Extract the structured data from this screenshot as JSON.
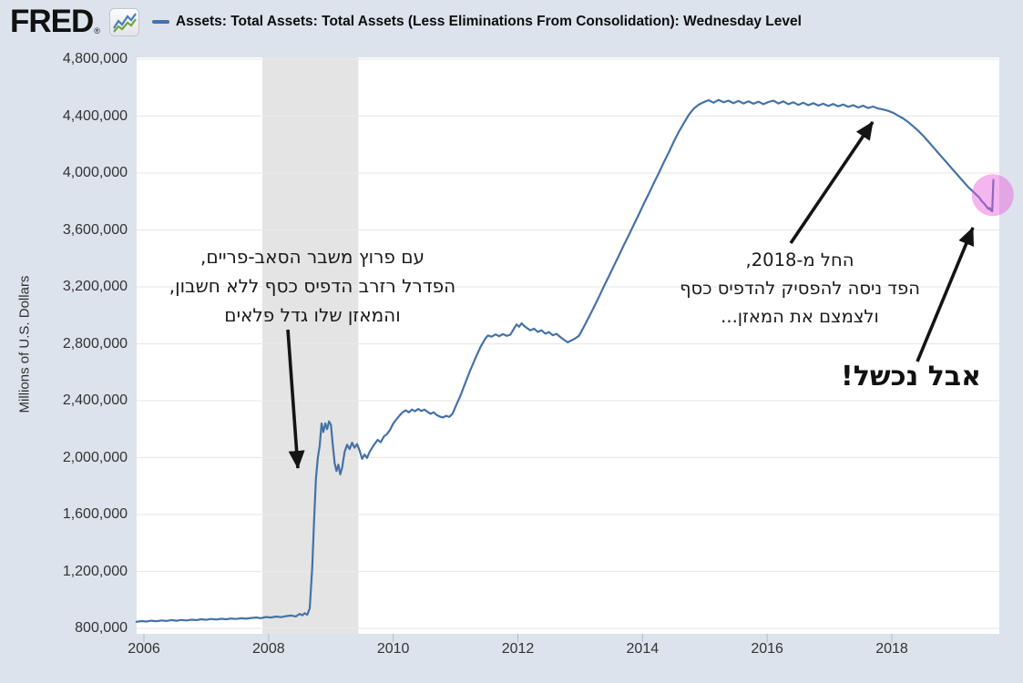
{
  "page": {
    "background_color": "#dce3ed"
  },
  "header": {
    "logo": "FRED",
    "registered": "®",
    "series_marker_color": "#4572a7",
    "title": "Assets: Total Assets: Total Assets (Less Eliminations From Consolidation): Wednesday Level"
  },
  "y_axis": {
    "title": "Millions of U.S. Dollars"
  },
  "annotations": {
    "subprime": {
      "lines": [
        "עם פרוץ משבר הסאב-פריים,",
        "הפדרל רזרב הדפיס כסף ללא חשבון,",
        "והמאזן שלו גדל פלאים"
      ]
    },
    "taper": {
      "lines": [
        "החל מ-2018,",
        "הפד ניסה להפסיק להדפיס כסף",
        "ולצמצם את המאזן..."
      ]
    },
    "failed": {
      "text": "אבל נכשל!"
    }
  },
  "chart_data": {
    "type": "line",
    "title": "Assets: Total Assets: Total Assets (Less Eliminations From Consolidation): Wednesday Level",
    "ylabel": "Millions of U.S. Dollars",
    "line_color": "#4572a7",
    "grid": true,
    "legend_position": "top",
    "x_range": [
      2005.85,
      2019.75
    ],
    "y_range": [
      760000,
      4810000
    ],
    "y_ticks": [
      {
        "label": "4,800,000",
        "value": 4800000
      },
      {
        "label": "4,400,000",
        "value": 4400000
      },
      {
        "label": "4,000,000",
        "value": 4000000
      },
      {
        "label": "3,600,000",
        "value": 3600000
      },
      {
        "label": "3,200,000",
        "value": 3200000
      },
      {
        "label": "2,800,000",
        "value": 2800000
      },
      {
        "label": "2,400,000",
        "value": 2400000
      },
      {
        "label": "2,000,000",
        "value": 2000000
      },
      {
        "label": "1,600,000",
        "value": 1600000
      },
      {
        "label": "1,200,000",
        "value": 1200000
      },
      {
        "label": "800,000",
        "value": 800000
      }
    ],
    "x_ticks": [
      {
        "label": "2006",
        "value": 2006
      },
      {
        "label": "2008",
        "value": 2008
      },
      {
        "label": "2010",
        "value": 2010
      },
      {
        "label": "2012",
        "value": 2012
      },
      {
        "label": "2014",
        "value": 2014
      },
      {
        "label": "2016",
        "value": 2016
      },
      {
        "label": "2018",
        "value": 2018
      }
    ],
    "recession_band": {
      "start": 2007.9,
      "end": 2009.44,
      "color": "#e4e4e4"
    },
    "highlight_circle": {
      "x": 2019.62,
      "value": 3845000,
      "radius_px": 23,
      "color": "#e85cdb",
      "opacity": 0.45
    },
    "series": [
      {
        "name": "Assets: Total Assets: Total Assets (Less Eliminations From Consolidation): Wednesday Level",
        "units": "Millions of U.S. Dollars",
        "points": [
          [
            2005.88,
            846000
          ],
          [
            2005.96,
            851000
          ],
          [
            2006.04,
            848000
          ],
          [
            2006.12,
            854000
          ],
          [
            2006.2,
            850000
          ],
          [
            2006.28,
            856000
          ],
          [
            2006.36,
            852000
          ],
          [
            2006.44,
            858000
          ],
          [
            2006.52,
            854000
          ],
          [
            2006.6,
            859000
          ],
          [
            2006.68,
            856000
          ],
          [
            2006.76,
            861000
          ],
          [
            2006.84,
            858000
          ],
          [
            2006.92,
            864000
          ],
          [
            2007,
            860000
          ],
          [
            2007.08,
            866000
          ],
          [
            2007.16,
            862000
          ],
          [
            2007.24,
            867000
          ],
          [
            2007.32,
            864000
          ],
          [
            2007.4,
            869000
          ],
          [
            2007.48,
            866000
          ],
          [
            2007.56,
            871000
          ],
          [
            2007.64,
            868000
          ],
          [
            2007.72,
            873000
          ],
          [
            2007.8,
            876000
          ],
          [
            2007.88,
            872000
          ],
          [
            2007.96,
            880000
          ],
          [
            2008.04,
            876000
          ],
          [
            2008.12,
            883000
          ],
          [
            2008.2,
            879000
          ],
          [
            2008.28,
            886000
          ],
          [
            2008.36,
            890000
          ],
          [
            2008.44,
            884000
          ],
          [
            2008.5,
            902000
          ],
          [
            2008.54,
            892000
          ],
          [
            2008.58,
            906000
          ],
          [
            2008.62,
            896000
          ],
          [
            2008.66,
            940000
          ],
          [
            2008.7,
            1220000
          ],
          [
            2008.73,
            1560000
          ],
          [
            2008.76,
            1850000
          ],
          [
            2008.79,
            2000000
          ],
          [
            2008.82,
            2080000
          ],
          [
            2008.85,
            2240000
          ],
          [
            2008.88,
            2180000
          ],
          [
            2008.91,
            2240000
          ],
          [
            2008.94,
            2200000
          ],
          [
            2008.97,
            2255000
          ],
          [
            2009,
            2230000
          ],
          [
            2009.03,
            2090000
          ],
          [
            2009.06,
            1960000
          ],
          [
            2009.09,
            1905000
          ],
          [
            2009.12,
            1950000
          ],
          [
            2009.15,
            1882000
          ],
          [
            2009.18,
            1930000
          ],
          [
            2009.22,
            2040000
          ],
          [
            2009.26,
            2090000
          ],
          [
            2009.3,
            2060000
          ],
          [
            2009.34,
            2105000
          ],
          [
            2009.38,
            2070000
          ],
          [
            2009.42,
            2095000
          ],
          [
            2009.46,
            2050000
          ],
          [
            2009.5,
            1992000
          ],
          [
            2009.54,
            2022000
          ],
          [
            2009.58,
            1998000
          ],
          [
            2009.62,
            2040000
          ],
          [
            2009.66,
            2068000
          ],
          [
            2009.7,
            2095000
          ],
          [
            2009.75,
            2125000
          ],
          [
            2009.8,
            2108000
          ],
          [
            2009.85,
            2148000
          ],
          [
            2009.9,
            2165000
          ],
          [
            2009.95,
            2195000
          ],
          [
            2010,
            2240000
          ],
          [
            2010.05,
            2268000
          ],
          [
            2010.1,
            2295000
          ],
          [
            2010.15,
            2318000
          ],
          [
            2010.2,
            2332000
          ],
          [
            2010.25,
            2318000
          ],
          [
            2010.3,
            2338000
          ],
          [
            2010.35,
            2326000
          ],
          [
            2010.4,
            2342000
          ],
          [
            2010.45,
            2328000
          ],
          [
            2010.5,
            2338000
          ],
          [
            2010.55,
            2322000
          ],
          [
            2010.6,
            2308000
          ],
          [
            2010.65,
            2318000
          ],
          [
            2010.7,
            2298000
          ],
          [
            2010.75,
            2288000
          ],
          [
            2010.8,
            2282000
          ],
          [
            2010.85,
            2294000
          ],
          [
            2010.9,
            2286000
          ],
          [
            2010.95,
            2308000
          ],
          [
            2011,
            2358000
          ],
          [
            2011.08,
            2438000
          ],
          [
            2011.16,
            2528000
          ],
          [
            2011.24,
            2618000
          ],
          [
            2011.32,
            2700000
          ],
          [
            2011.4,
            2778000
          ],
          [
            2011.48,
            2838000
          ],
          [
            2011.52,
            2858000
          ],
          [
            2011.58,
            2850000
          ],
          [
            2011.64,
            2866000
          ],
          [
            2011.7,
            2854000
          ],
          [
            2011.76,
            2868000
          ],
          [
            2011.82,
            2856000
          ],
          [
            2011.88,
            2864000
          ],
          [
            2011.94,
            2908000
          ],
          [
            2011.98,
            2936000
          ],
          [
            2012.02,
            2920000
          ],
          [
            2012.06,
            2944000
          ],
          [
            2012.1,
            2926000
          ],
          [
            2012.14,
            2912000
          ],
          [
            2012.2,
            2895000
          ],
          [
            2012.26,
            2906000
          ],
          [
            2012.32,
            2884000
          ],
          [
            2012.38,
            2895000
          ],
          [
            2012.44,
            2872000
          ],
          [
            2012.5,
            2882000
          ],
          [
            2012.56,
            2860000
          ],
          [
            2012.62,
            2870000
          ],
          [
            2012.68,
            2848000
          ],
          [
            2012.74,
            2828000
          ],
          [
            2012.8,
            2810000
          ],
          [
            2012.86,
            2824000
          ],
          [
            2012.92,
            2838000
          ],
          [
            2012.98,
            2856000
          ],
          [
            2013.06,
            2920000
          ],
          [
            2013.14,
            2988000
          ],
          [
            2013.22,
            3058000
          ],
          [
            2013.3,
            3128000
          ],
          [
            2013.38,
            3204000
          ],
          [
            2013.46,
            3274000
          ],
          [
            2013.54,
            3348000
          ],
          [
            2013.62,
            3418000
          ],
          [
            2013.7,
            3494000
          ],
          [
            2013.78,
            3564000
          ],
          [
            2013.86,
            3638000
          ],
          [
            2013.94,
            3708000
          ],
          [
            2014.02,
            3784000
          ],
          [
            2014.1,
            3854000
          ],
          [
            2014.18,
            3928000
          ],
          [
            2014.26,
            3998000
          ],
          [
            2014.34,
            4074000
          ],
          [
            2014.42,
            4144000
          ],
          [
            2014.5,
            4218000
          ],
          [
            2014.58,
            4288000
          ],
          [
            2014.66,
            4348000
          ],
          [
            2014.74,
            4408000
          ],
          [
            2014.82,
            4452000
          ],
          [
            2014.9,
            4480000
          ],
          [
            2014.98,
            4498000
          ],
          [
            2015.06,
            4512000
          ],
          [
            2015.14,
            4494000
          ],
          [
            2015.22,
            4514000
          ],
          [
            2015.3,
            4497000
          ],
          [
            2015.38,
            4509000
          ],
          [
            2015.46,
            4491000
          ],
          [
            2015.54,
            4507000
          ],
          [
            2015.62,
            4489000
          ],
          [
            2015.7,
            4504000
          ],
          [
            2015.78,
            4487000
          ],
          [
            2015.86,
            4501000
          ],
          [
            2015.94,
            4484000
          ],
          [
            2016.02,
            4499000
          ],
          [
            2016.1,
            4509000
          ],
          [
            2016.18,
            4489000
          ],
          [
            2016.26,
            4504000
          ],
          [
            2016.34,
            4484000
          ],
          [
            2016.42,
            4497000
          ],
          [
            2016.5,
            4479000
          ],
          [
            2016.58,
            4494000
          ],
          [
            2016.66,
            4477000
          ],
          [
            2016.74,
            4491000
          ],
          [
            2016.82,
            4474000
          ],
          [
            2016.9,
            4487000
          ],
          [
            2016.98,
            4471000
          ],
          [
            2017.06,
            4485000
          ],
          [
            2017.14,
            4469000
          ],
          [
            2017.22,
            4481000
          ],
          [
            2017.3,
            4465000
          ],
          [
            2017.38,
            4477000
          ],
          [
            2017.46,
            4461000
          ],
          [
            2017.54,
            4473000
          ],
          [
            2017.62,
            4457000
          ],
          [
            2017.7,
            4467000
          ],
          [
            2017.78,
            4454000
          ],
          [
            2017.86,
            4447000
          ],
          [
            2017.94,
            4437000
          ],
          [
            2018.02,
            4424000
          ],
          [
            2018.1,
            4404000
          ],
          [
            2018.18,
            4384000
          ],
          [
            2018.26,
            4359000
          ],
          [
            2018.34,
            4329000
          ],
          [
            2018.42,
            4299000
          ],
          [
            2018.5,
            4264000
          ],
          [
            2018.58,
            4224000
          ],
          [
            2018.66,
            4184000
          ],
          [
            2018.74,
            4144000
          ],
          [
            2018.82,
            4104000
          ],
          [
            2018.9,
            4064000
          ],
          [
            2018.98,
            4024000
          ],
          [
            2019.06,
            3984000
          ],
          [
            2019.14,
            3944000
          ],
          [
            2019.22,
            3904000
          ],
          [
            2019.28,
            3879000
          ],
          [
            2019.34,
            3854000
          ],
          [
            2019.4,
            3829000
          ],
          [
            2019.44,
            3804000
          ],
          [
            2019.48,
            3786000
          ],
          [
            2019.5,
            3776000
          ],
          [
            2019.53,
            3758000
          ],
          [
            2019.55,
            3748000
          ],
          [
            2019.57,
            3755000
          ],
          [
            2019.59,
            3737000
          ],
          [
            2019.61,
            3731000
          ],
          [
            2019.63,
            3952000
          ]
        ]
      }
    ]
  }
}
